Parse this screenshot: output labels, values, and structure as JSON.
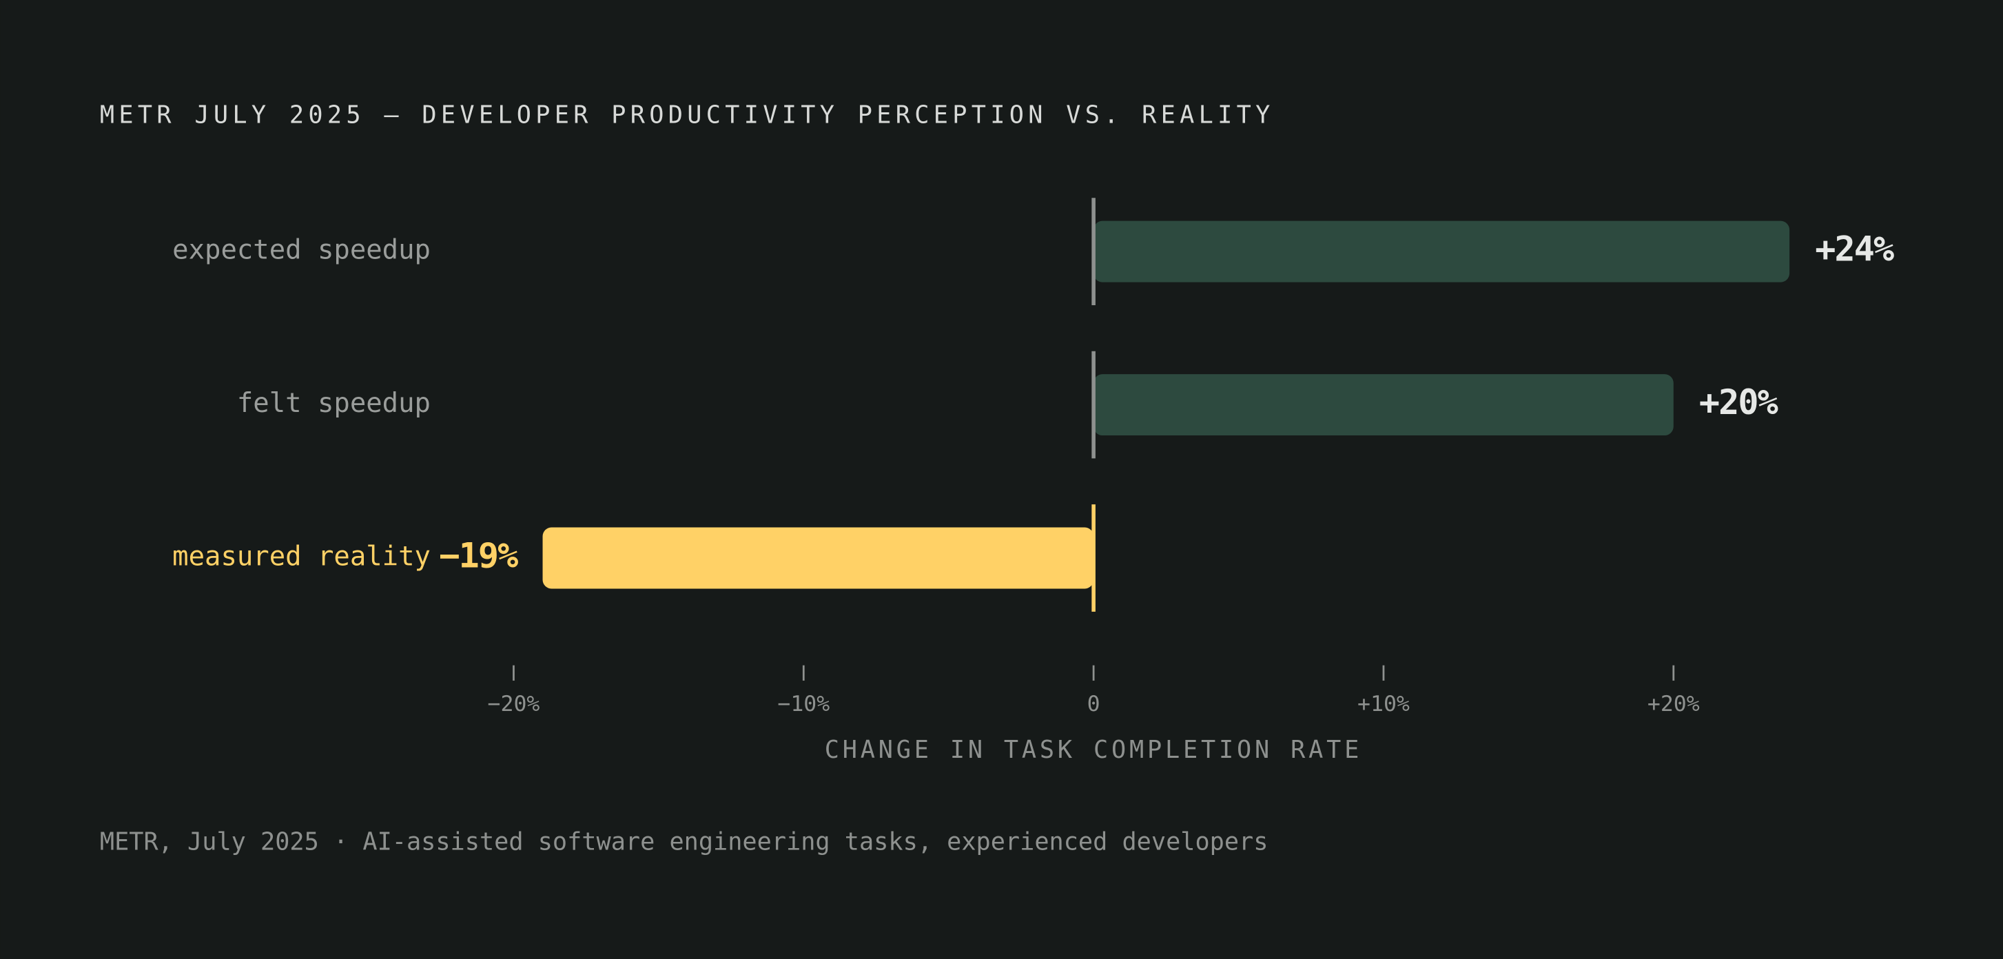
{
  "chart_data": {
    "type": "hbar",
    "title": "METR JULY 2025 — DEVELOPER PRODUCTIVITY PERCEPTION VS. REALITY",
    "categories": [
      "expected speedup",
      "felt speedup",
      "measured reality"
    ],
    "values": [
      24,
      20,
      -19
    ],
    "value_labels": [
      "+24%",
      "+20%",
      "−19%"
    ],
    "colors": [
      "#2d4a3f",
      "#2d4a3f",
      "#ffd166"
    ],
    "label_colors": [
      "#9a9d9b",
      "#9a9d9b",
      "#ffd166"
    ],
    "xlim": [
      -20,
      24
    ],
    "xticks": [
      {
        "value": -20,
        "label": "−20%"
      },
      {
        "value": -10,
        "label": "−10%"
      },
      0,
      {
        "value": 10,
        "label": "+10%"
      },
      {
        "value": 20,
        "label": "+20%"
      }
    ],
    "xlabel": "CHANGE IN TASK COMPLETION RATE",
    "source": "METR, July 2025 · AI-assisted software engineering tasks, experienced developers"
  }
}
